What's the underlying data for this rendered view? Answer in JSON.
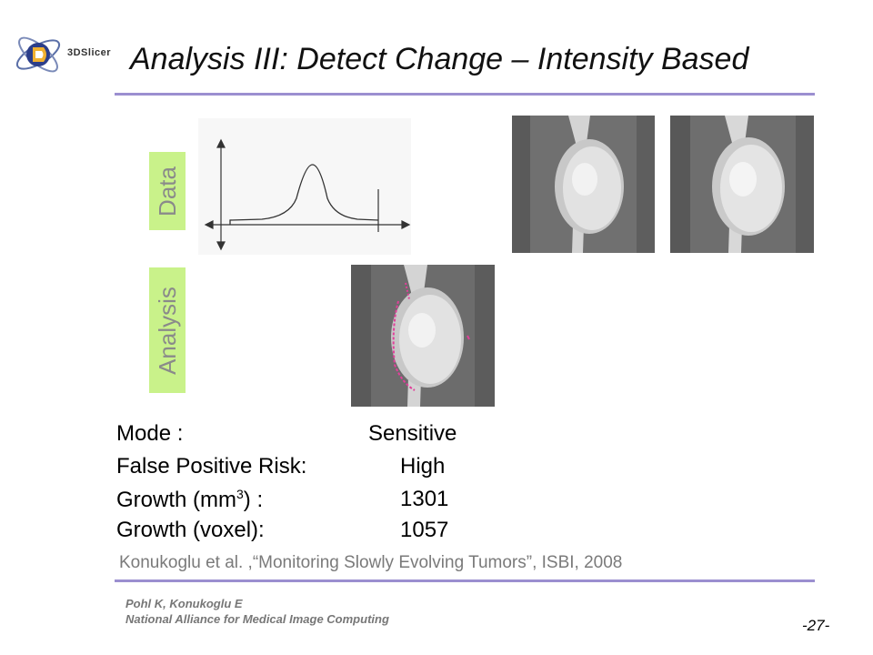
{
  "logo": {
    "text": "3DSlicer"
  },
  "title": "Analysis III: Detect Change – Intensity Based",
  "labels": {
    "data": "Data",
    "analysis": "Analysis"
  },
  "stats": {
    "mode_label": "Mode :",
    "mode_value": "Sensitive",
    "fpr_label": "False Positive Risk:",
    "fpr_value": "High",
    "growth_mm_label_prefix": "Growth (mm",
    "growth_mm_label_sup": "3",
    "growth_mm_label_suffix": ") :",
    "growth_mm_value": "1301",
    "growth_voxel_label": "Growth (voxel):",
    "growth_voxel_value": "1057"
  },
  "citation": "Konukoglu et al. ,“Monitoring Slowly Evolving Tumors”, ISBI, 2008",
  "footer": {
    "authors": "Pohl K, Konukoglu E",
    "organization": "National Alliance for Medical Image Computing",
    "page": "-27-"
  },
  "colors": {
    "label_bg": "#c9f28a",
    "rule": "#9b8fd0",
    "segmentation": "#e0409a"
  }
}
